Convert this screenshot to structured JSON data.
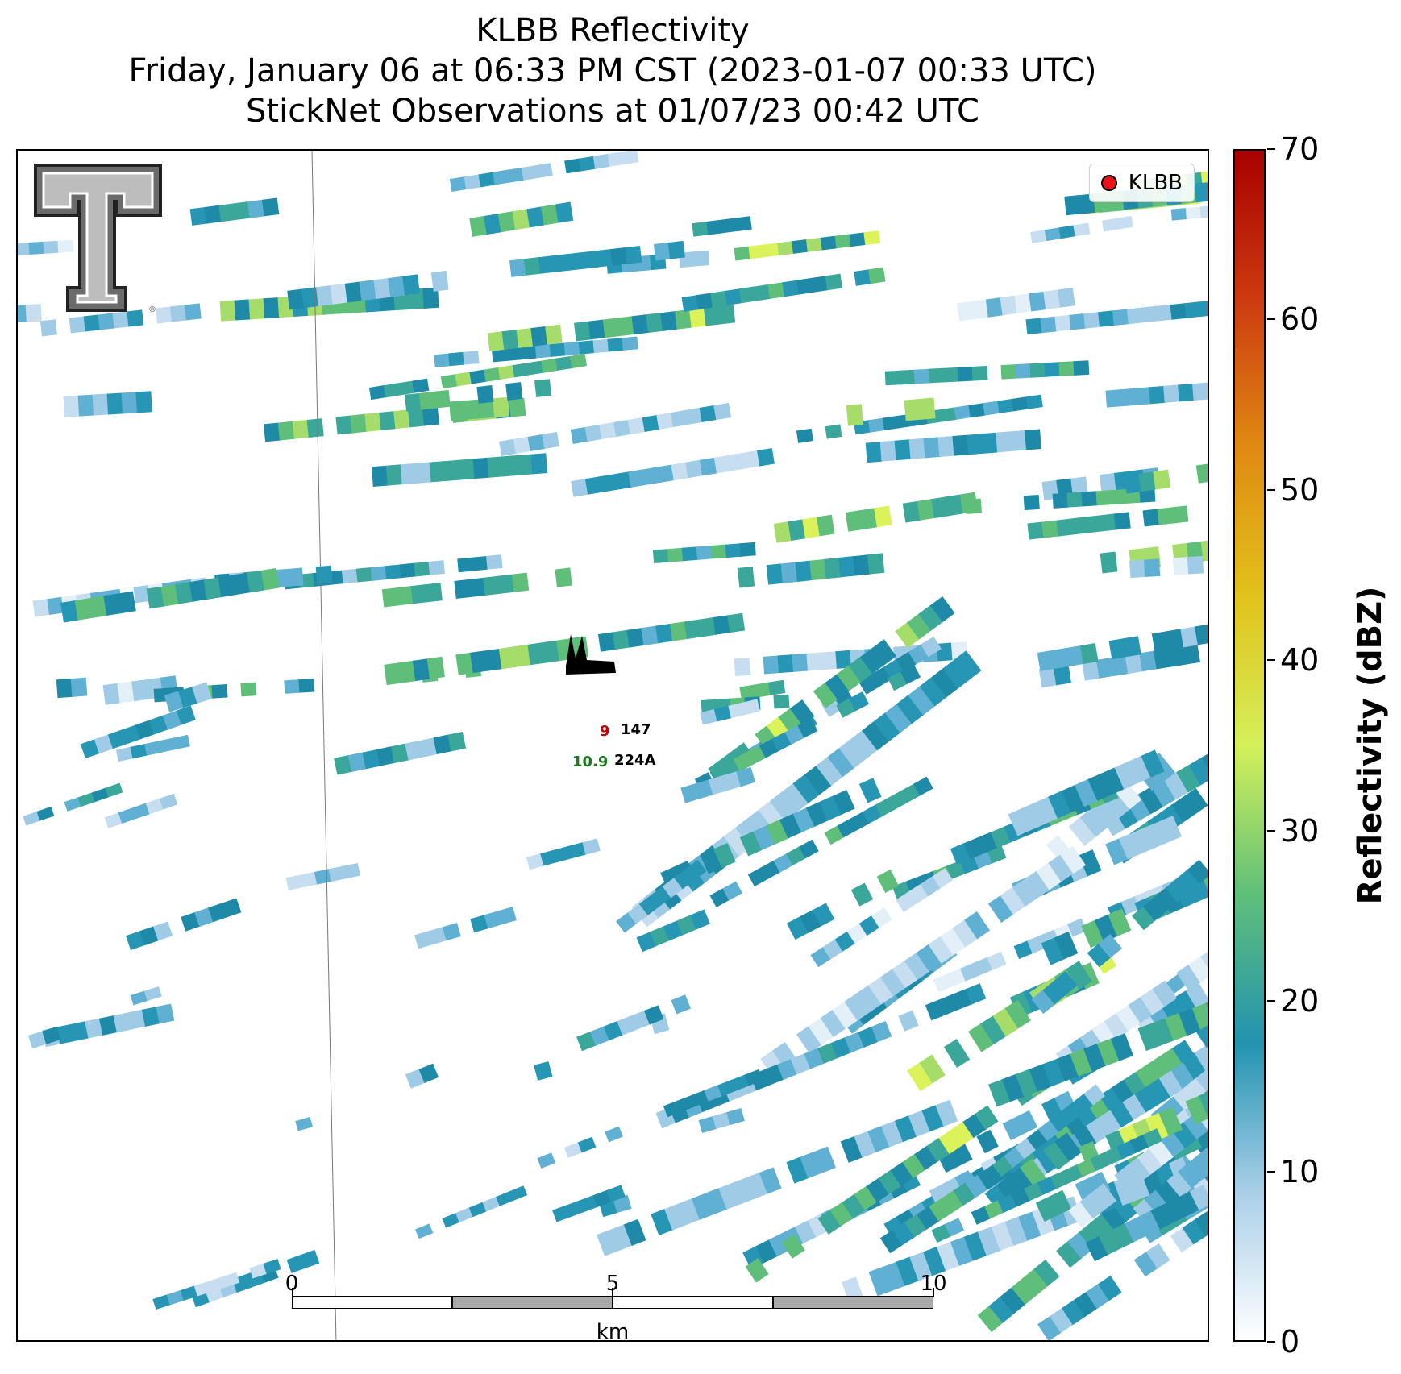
{
  "title": {
    "line1": "KLBB Reflectivity",
    "line2": "Friday, January 06 at 06:33 PM CST (2023-01-07 00:33 UTC)",
    "line3": "StickNet Observations at 01/07/23 00:42 UTC"
  },
  "legend": {
    "label": "KLBB",
    "marker_color": "#e8131b"
  },
  "colorbar": {
    "title": "Reflectivity (dBZ)",
    "ticks": [
      "0",
      "10",
      "20",
      "30",
      "40",
      "50",
      "60",
      "70"
    ],
    "min": 0,
    "max": 70,
    "stops": [
      "#ffffff",
      "#a9cfe8",
      "#2293b0",
      "#5fbf7a",
      "#d4f05a",
      "#e2c21b",
      "#e08a12",
      "#cc3a10",
      "#a90000"
    ]
  },
  "scalebar": {
    "ticks": [
      "0",
      "5",
      "10"
    ],
    "unit": "km"
  },
  "stations": [
    {
      "temp": "9",
      "temp_color": "#c00000",
      "id": "147"
    },
    {
      "temp": "10.9",
      "temp_color": "#1a7a1a",
      "id": "224A"
    }
  ],
  "logo": {
    "name": "Texas Tech Double T"
  },
  "colors": {
    "frame": "#000000",
    "radar_low": "#a9cfe8",
    "radar_mid": "#2293b0",
    "radar_high": "#d4f05a"
  }
}
